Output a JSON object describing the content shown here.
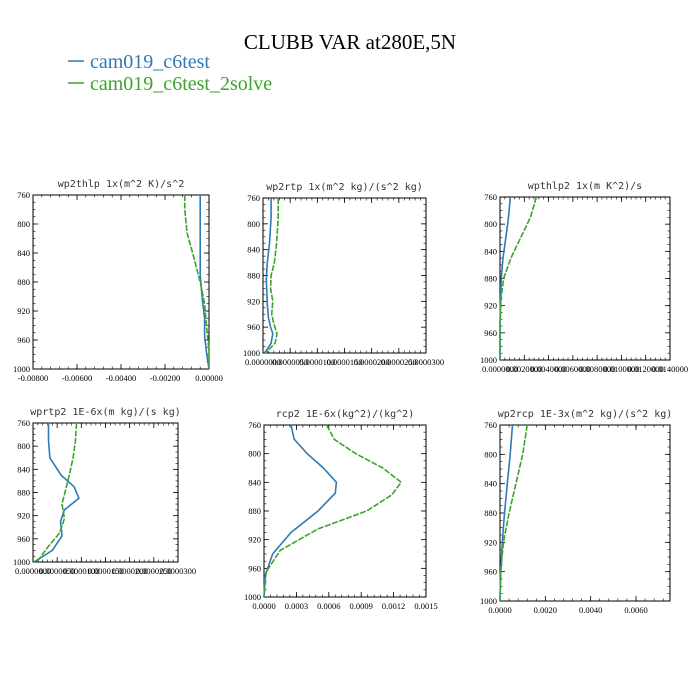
{
  "title": "CLUBB VAR at280E,5N",
  "legend": [
    {
      "label": "cam019_c6test",
      "color": "#2e7bb6"
    },
    {
      "label": "cam019_c6test_2solve",
      "color": "#3ca32c"
    }
  ],
  "chart_data": [
    {
      "type": "line",
      "title": "wp2thlp   1x(m^2 K)/s^2",
      "ylim": [
        760,
        1000
      ],
      "y_reversed": true,
      "xlim": [
        -0.008,
        0.0
      ],
      "yticks": [
        "760",
        "800",
        "840",
        "880",
        "920",
        "960",
        "1000"
      ],
      "xticks": [
        "-0.00800",
        "-0.00600",
        "-0.00400",
        "-0.00200",
        "0.00000"
      ],
      "series": [
        {
          "name": "cam019_c6test",
          "x": [
            -0.0004,
            -0.0004,
            -0.0004,
            -0.0004,
            -0.0003,
            -0.0002,
            -0.0002,
            -0.0001,
            0.0
          ],
          "y": [
            760,
            790,
            830,
            870,
            905,
            930,
            955,
            980,
            1000
          ]
        },
        {
          "name": "cam019_c6test_2solve",
          "x": [
            -0.0011,
            -0.0011,
            -0.001,
            -0.0007,
            -0.0004,
            -0.0002,
            -0.0001,
            0.0,
            0.0
          ],
          "y": [
            760,
            780,
            812,
            845,
            880,
            910,
            945,
            975,
            1000
          ]
        }
      ]
    },
    {
      "type": "line",
      "title": "wp2rtp   1x(m^2 kg)/(s^2 kg)",
      "ylim": [
        760,
        1000
      ],
      "y_reversed": true,
      "xlim": [
        0.0,
        3e-05
      ],
      "yticks": [
        "760",
        "800",
        "840",
        "880",
        "920",
        "960",
        "1000"
      ],
      "xticks": [
        "0.0000000",
        "0.0000050",
        "0.0000100",
        "0.0000150",
        "0.0000200",
        "0.0000250",
        "0.0000300"
      ],
      "series": [
        {
          "name": "cam019_c6test",
          "x": [
            1.5e-06,
            1.5e-06,
            1.2e-06,
            8e-07,
            6e-07,
            7e-07,
            8e-07,
            1e-06,
            1.4e-06,
            1.8e-06,
            1.5e-06,
            3e-07
          ],
          "y": [
            760,
            790,
            830,
            860,
            885,
            905,
            925,
            945,
            960,
            970,
            985,
            1000
          ]
        },
        {
          "name": "cam019_c6test_2solve",
          "x": [
            2.8e-06,
            2.8e-06,
            2.5e-06,
            2.1e-06,
            1.5e-06,
            1.4e-06,
            1.8e-06,
            1.6e-06,
            2e-06,
            2.6e-06,
            2.2e-06,
            5e-07
          ],
          "y": [
            760,
            790,
            830,
            860,
            880,
            900,
            920,
            940,
            955,
            970,
            985,
            1000
          ]
        }
      ]
    },
    {
      "type": "line",
      "title": "wpthlp2   1x(m K^2)/s",
      "ylim": [
        760,
        1000
      ],
      "y_reversed": true,
      "xlim": [
        0.0,
        0.014
      ],
      "yticks": [
        "760",
        "800",
        "840",
        "880",
        "920",
        "960",
        "1000"
      ],
      "xticks": [
        "0.0000000",
        "0.0020000",
        "0.0040000",
        "0.0060000",
        "0.0080000",
        "0.0100000",
        "0.0120000",
        "0.0140000"
      ],
      "series": [
        {
          "name": "cam019_c6test",
          "x": [
            0.00085,
            0.0007,
            0.00048,
            0.00025,
            0.0001,
            5e-05,
            0.0,
            0.0
          ],
          "y": [
            760,
            790,
            820,
            850,
            880,
            910,
            950,
            1000
          ]
        },
        {
          "name": "cam019_c6test_2solve",
          "x": [
            0.003,
            0.0025,
            0.0017,
            0.0009,
            0.0003,
            8e-05,
            0.0,
            0.0
          ],
          "y": [
            760,
            790,
            820,
            850,
            880,
            910,
            950,
            1000
          ]
        }
      ]
    },
    {
      "type": "line",
      "title": "wprtp2   1E-6x(m kg)/(s kg)",
      "ylim": [
        760,
        1000
      ],
      "y_reversed": true,
      "xlim": [
        0.0,
        3e-05
      ],
      "yticks": [
        "760",
        "800",
        "840",
        "880",
        "920",
        "960",
        "1000"
      ],
      "xticks": [
        "0.0000000",
        "0.0000050",
        "0.0000100",
        "0.0000150",
        "0.0000200",
        "0.0000250",
        "0.0000300"
      ],
      "series": [
        {
          "name": "cam019_c6test",
          "x": [
            3.2e-06,
            3.2e-06,
            3.5e-06,
            5.8e-06,
            8.5e-06,
            9.5e-06,
            6.5e-06,
            5.7e-06,
            6e-06,
            4e-06,
            2e-07
          ],
          "y": [
            760,
            790,
            820,
            850,
            870,
            890,
            910,
            930,
            955,
            980,
            1000
          ]
        },
        {
          "name": "cam019_c6test_2solve",
          "x": [
            9e-06,
            8.8e-06,
            8.3e-06,
            7.5e-06,
            6.6e-06,
            6e-06,
            6.5e-06,
            5.5e-06,
            3e-06,
            8e-07
          ],
          "y": [
            760,
            790,
            820,
            850,
            880,
            900,
            925,
            950,
            975,
            1000
          ]
        }
      ]
    },
    {
      "type": "line",
      "title": "rcp2   1E-6x(kg^2)/(kg^2)",
      "ylim": [
        760,
        1000
      ],
      "y_reversed": true,
      "xlim": [
        0.0,
        0.0015
      ],
      "yticks": [
        "760",
        "800",
        "840",
        "880",
        "920",
        "960",
        "1000"
      ],
      "xticks": [
        "0.0000",
        "0.0003",
        "0.0006",
        "0.0009",
        "0.0012",
        "0.0015"
      ],
      "series": [
        {
          "name": "cam019_c6test",
          "x": [
            0.00025,
            0.00028,
            0.0004,
            0.00055,
            0.00067,
            0.00066,
            0.0005,
            0.00025,
            8e-05,
            1e-05,
            0.0
          ],
          "y": [
            760,
            780,
            800,
            820,
            840,
            855,
            880,
            910,
            940,
            970,
            1000
          ]
        },
        {
          "name": "cam019_c6test_2solve",
          "x": [
            0.00058,
            0.00065,
            0.00085,
            0.0011,
            0.00127,
            0.00118,
            0.00095,
            0.0005,
            0.00015,
            2e-05,
            0.0
          ],
          "y": [
            760,
            780,
            800,
            820,
            840,
            858,
            880,
            905,
            935,
            965,
            1000
          ]
        }
      ]
    },
    {
      "type": "line",
      "title": "wp2rcp   1E-3x(m^2 kg)/(s^2 kg)",
      "ylim": [
        760,
        1000
      ],
      "y_reversed": true,
      "xlim": [
        0.0,
        0.0075
      ],
      "yticks": [
        "760",
        "800",
        "840",
        "880",
        "920",
        "960",
        "1000"
      ],
      "xticks": [
        "0.0000",
        "0.0020",
        "0.0040",
        "0.0060"
      ],
      "series": [
        {
          "name": "cam019_c6test",
          "x": [
            0.00055,
            0.00045,
            0.00032,
            0.0002,
            0.0001,
            3e-05,
            0.0
          ],
          "y": [
            760,
            800,
            840,
            880,
            920,
            960,
            1000
          ]
        },
        {
          "name": "cam019_c6test_2solve",
          "x": [
            0.0012,
            0.001,
            0.0007,
            0.0004,
            0.00015,
            3e-05,
            0.0
          ],
          "y": [
            760,
            800,
            840,
            880,
            920,
            960,
            1000
          ]
        }
      ]
    }
  ]
}
